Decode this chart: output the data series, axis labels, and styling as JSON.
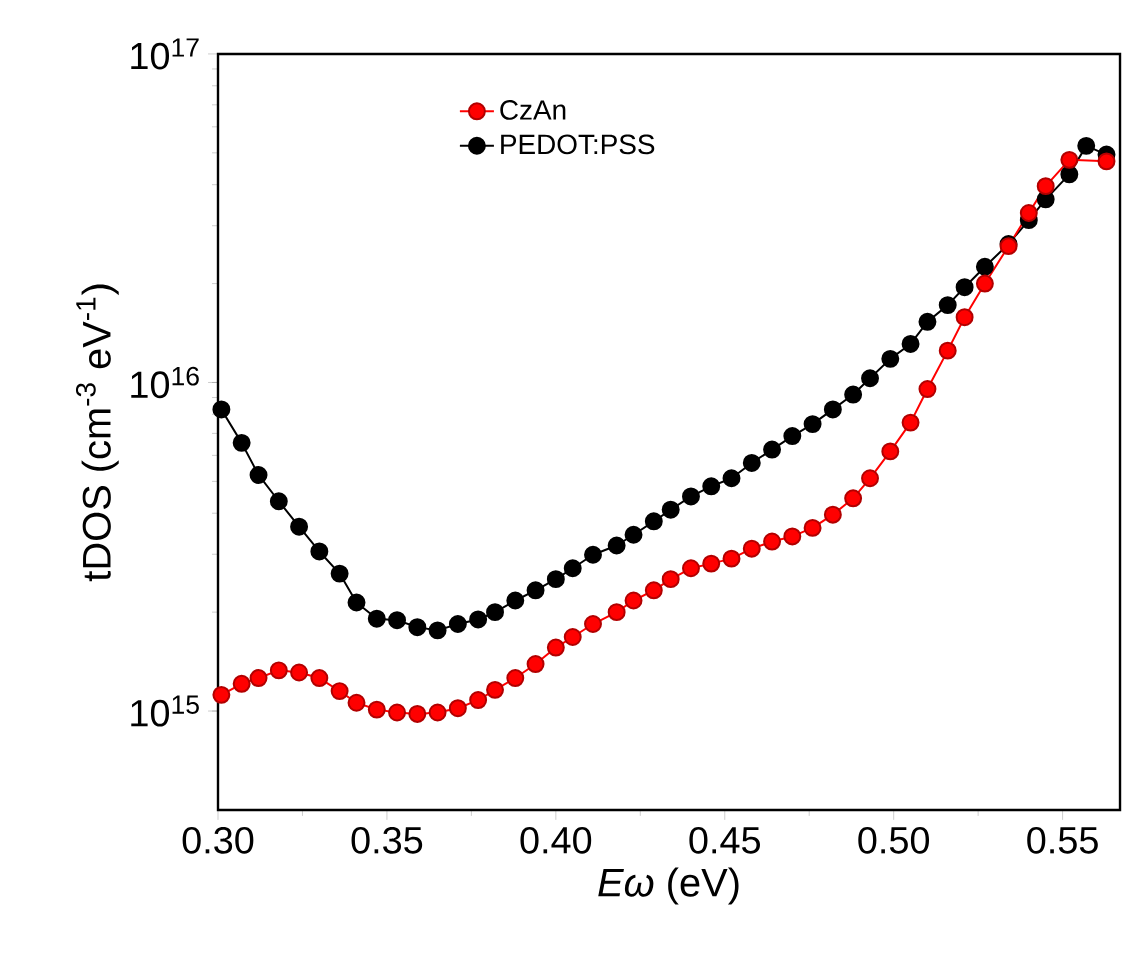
{
  "chart_data": {
    "type": "line",
    "xlabel": "*Eω* (eV)",
    "ylabel": "tDOS (cm$^{-3}$ eV$^{-1}$)",
    "x": [
      0.301,
      0.307,
      0.312,
      0.318,
      0.324,
      0.33,
      0.336,
      0.341,
      0.347,
      0.353,
      0.359,
      0.365,
      0.371,
      0.377,
      0.382,
      0.388,
      0.394,
      0.4,
      0.405,
      0.411,
      0.418,
      0.423,
      0.429,
      0.434,
      0.44,
      0.446,
      0.452,
      0.458,
      0.464,
      0.47,
      0.476,
      0.482,
      0.488,
      0.493,
      0.499,
      0.505,
      0.51,
      0.516,
      0.521,
      0.527,
      0.534,
      0.54,
      0.545,
      0.552,
      0.557,
      0.563
    ],
    "series": [
      {
        "name": "CzAn",
        "color": "#ff0000",
        "values": [
          1120000000000000.0,
          1210000000000000.0,
          1260000000000000.0,
          1330000000000000.0,
          1310000000000000.0,
          1260000000000000.0,
          1150000000000000.0,
          1060000000000000.0,
          1010000000000000.0,
          990000000000000.0,
          980000000000000.0,
          990000000000000.0,
          1020000000000000.0,
          1080000000000000.0,
          1160000000000000.0,
          1260000000000000.0,
          1390000000000000.0,
          1560000000000000.0,
          1680000000000000.0,
          1840000000000000.0,
          2000000000000000.0,
          2170000000000000.0,
          2330000000000000.0,
          2520000000000000.0,
          2720000000000000.0,
          2810000000000000.0,
          2910000000000000.0,
          3120000000000000.0,
          3280000000000000.0,
          3400000000000000.0,
          3610000000000000.0,
          3960000000000000.0,
          4440000000000000.0,
          5110000000000000.0,
          6170000000000000.0,
          7550000000000000.0,
          9550000000000000.0,
          1.25e+16,
          1.58e+16,
          2e+16,
          2.6e+16,
          3.28e+16,
          3.96e+16,
          4.76e+16,
          null,
          4.71e+16
        ]
      },
      {
        "name": "PEDOT:PSS",
        "color": "#000000",
        "values": [
          8280000000000000.0,
          6550000000000000.0,
          5230000000000000.0,
          4350000000000000.0,
          3640000000000000.0,
          3060000000000000.0,
          2620000000000000.0,
          2140000000000000.0,
          1910000000000000.0,
          1890000000000000.0,
          1800000000000000.0,
          1760000000000000.0,
          1840000000000000.0,
          1900000000000000.0,
          2000000000000000.0,
          2170000000000000.0,
          2330000000000000.0,
          2520000000000000.0,
          2720000000000000.0,
          2990000000000000.0,
          3190000000000000.0,
          3440000000000000.0,
          3780000000000000.0,
          4100000000000000.0,
          4500000000000000.0,
          4830000000000000.0,
          5110000000000000.0,
          5690000000000000.0,
          6250000000000000.0,
          6870000000000000.0,
          7470000000000000.0,
          8280000000000000.0,
          9190000000000000.0,
          1.03e+16,
          1.18e+16,
          1.31e+16,
          1.53e+16,
          1.72e+16,
          1.95e+16,
          2.25e+16,
          2.64e+16,
          3.12e+16,
          3.61e+16,
          4.3e+16,
          5.25e+16,
          4.94e+16
        ]
      }
    ],
    "log": "y",
    "xlim": [
      0.3,
      0.567
    ],
    "ylim": [
      500000000000000.0,
      1e+17
    ],
    "xticks": [
      {
        "value": 0.3,
        "label": "0.30"
      },
      0.35,
      {
        "value": 0.4,
        "label": "0.40"
      },
      0.45,
      {
        "value": 0.5,
        "label": "0.50"
      },
      0.55
    ],
    "yticks": [
      {
        "value": 1000000000000000.0,
        "label": "10$^{15}$"
      },
      {
        "value": 1e+16,
        "label": "10$^{16}$"
      },
      {
        "value": 1e+17,
        "label": "10$^{17}$"
      }
    ],
    "legend": "top left",
    "marker": "circle",
    "line_style": "solid",
    "grid": false
  }
}
